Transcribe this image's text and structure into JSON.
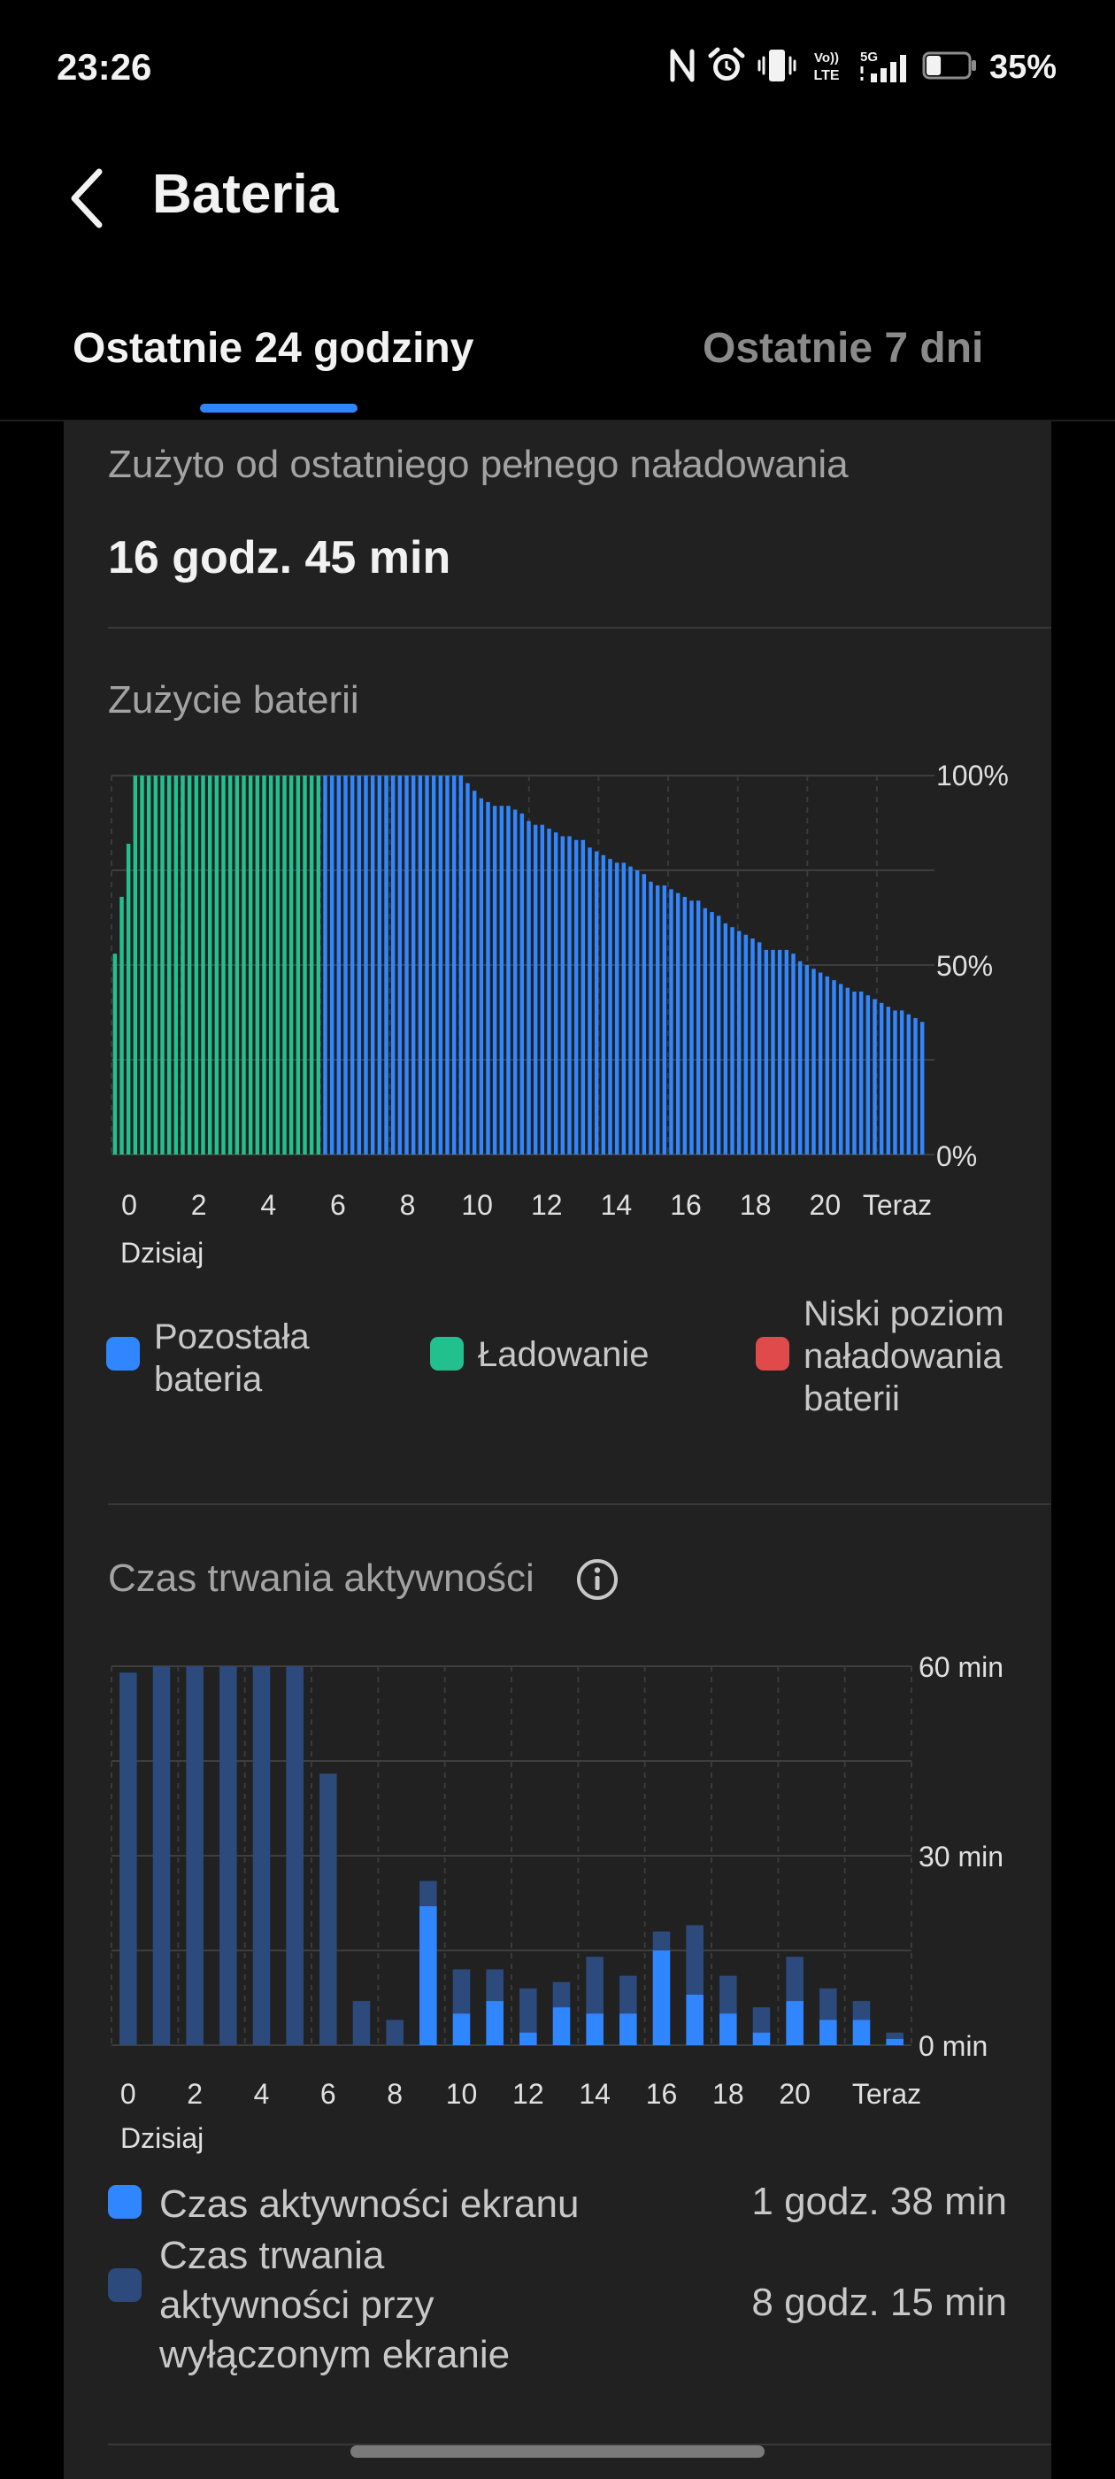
{
  "status_bar": {
    "time": "23:26",
    "battery_percent": "35%",
    "battery_level": 0.35,
    "icons": [
      "nfc-icon",
      "alarm-icon",
      "vibrate-icon",
      "volte-icon",
      "signal-5g-icon",
      "battery-icon"
    ],
    "volte_label": "Vo)) LTE",
    "network_label": "5G"
  },
  "header": {
    "title": "Bateria",
    "back_icon": "chevron-left-icon"
  },
  "tabs": [
    {
      "label": "Ostatnie 24 godziny",
      "active": true
    },
    {
      "label": "Ostatnie 7 dni",
      "active": false
    }
  ],
  "summary": {
    "label": "Zużyto od ostatniego pełnego naładowania",
    "value": "16 godz. 45 min"
  },
  "battery_chart": {
    "title": "Zużycie baterii",
    "y_ticks": [
      "100%",
      "50%",
      "0%"
    ],
    "x_ticks": [
      "0",
      "2",
      "4",
      "6",
      "8",
      "10",
      "12",
      "14",
      "16",
      "18",
      "20",
      "Teraz"
    ],
    "day_label": "Dzisiaj",
    "legend": [
      {
        "label": "Pozostała bateria",
        "color": "#2f86ff"
      },
      {
        "label": "Ładowanie",
        "color": "#22c08c"
      },
      {
        "label": "Niski poziom naładowania baterii",
        "color": "#e04a4a"
      }
    ]
  },
  "activity_chart": {
    "title": "Czas trwania aktywności",
    "info_icon": "info-icon",
    "y_ticks": [
      "60 min",
      "30 min",
      "0 min"
    ],
    "x_ticks": [
      "0",
      "2",
      "4",
      "6",
      "8",
      "10",
      "12",
      "14",
      "16",
      "18",
      "20",
      "Teraz"
    ],
    "day_label": "Dzisiaj",
    "rows": [
      {
        "label": "Czas aktywności ekranu",
        "value": "1 godz. 38 min",
        "color": "#2f86ff"
      },
      {
        "label": "Czas trwania aktywności przy wyłączonym ekranie",
        "value": "8 godz. 15 min",
        "color": "#2c4a7c"
      }
    ]
  },
  "chart_data": [
    {
      "type": "bar",
      "title": "Zużycie baterii",
      "xlabel": "",
      "ylabel": "",
      "ylim": [
        0,
        100
      ],
      "unit": "%",
      "hours_start": 0,
      "hours_end": 23.4,
      "charging_until_index": 31,
      "values": [
        53,
        68,
        82,
        100,
        100,
        100,
        100,
        100,
        100,
        100,
        100,
        100,
        100,
        100,
        100,
        100,
        100,
        100,
        100,
        100,
        100,
        100,
        100,
        100,
        100,
        100,
        100,
        100,
        100,
        100,
        100,
        100,
        100,
        100,
        100,
        100,
        100,
        100,
        100,
        100,
        100,
        100,
        100,
        100,
        100,
        100,
        100,
        100,
        100,
        100,
        100,
        100,
        98,
        96,
        94,
        93,
        92,
        92,
        92,
        91,
        90,
        88,
        87,
        87,
        86,
        85,
        84,
        84,
        83,
        83,
        81,
        80,
        79,
        78,
        77,
        77,
        76,
        75,
        74,
        72,
        71,
        71,
        70,
        69,
        68,
        67,
        67,
        65,
        64,
        63,
        61,
        60,
        59,
        58,
        57,
        56,
        54,
        54,
        54,
        54,
        53,
        51,
        50,
        49,
        48,
        47,
        46,
        45,
        44,
        43,
        43,
        42,
        41,
        40,
        39,
        38,
        38,
        37,
        36,
        35
      ],
      "series": [
        {
          "name": "Pozostała bateria",
          "color": "#2f86ff"
        },
        {
          "name": "Ładowanie",
          "color": "#22c08c"
        }
      ]
    },
    {
      "type": "bar",
      "title": "Czas trwania aktywności",
      "xlabel": "",
      "ylabel": "",
      "ylim": [
        0,
        60
      ],
      "unit": "min",
      "categories": [
        "0",
        "1",
        "2",
        "3",
        "4",
        "5",
        "6",
        "7",
        "8",
        "9",
        "10",
        "11",
        "12",
        "13",
        "14",
        "15",
        "16",
        "17",
        "18",
        "19",
        "20",
        "21",
        "22",
        "23"
      ],
      "series": [
        {
          "name": "Czas aktywności ekranu",
          "color": "#2f86ff",
          "values": [
            0,
            0,
            0,
            0,
            0,
            0,
            0,
            0,
            0,
            22,
            5,
            7,
            2,
            6,
            5,
            5,
            15,
            8,
            5,
            2,
            7,
            4,
            4,
            1
          ]
        },
        {
          "name": "Czas trwania aktywności przy wyłączonym ekranie",
          "color": "#2c4a7c",
          "values": [
            59,
            60,
            60,
            60,
            60,
            60,
            43,
            7,
            4,
            4,
            7,
            5,
            7,
            4,
            9,
            6,
            3,
            11,
            6,
            4,
            7,
            5,
            3,
            1
          ]
        }
      ]
    }
  ]
}
